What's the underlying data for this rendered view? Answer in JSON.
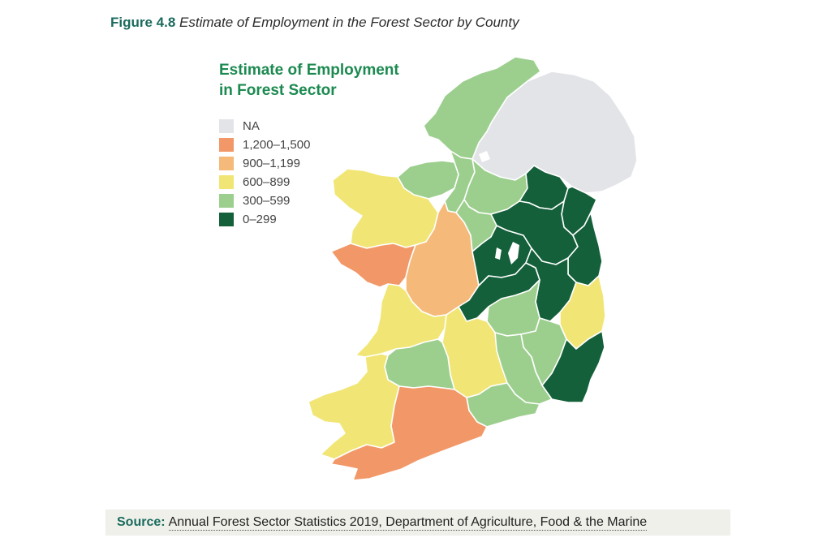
{
  "figure": {
    "number": "Figure 4.8",
    "title": "Estimate of Employment in the Forest Sector by County"
  },
  "legend": {
    "title_line1": "Estimate of Employment",
    "title_line2": "in Forest Sector",
    "items": [
      {
        "label": "NA",
        "color": "#e3e4e8"
      },
      {
        "label": "1,200–1,500",
        "color": "#f29868"
      },
      {
        "label": "900–1,199",
        "color": "#f5b97a"
      },
      {
        "label": "600–899",
        "color": "#f1e675"
      },
      {
        "label": "300–599",
        "color": "#9ccf8e"
      },
      {
        "label": "0–299",
        "color": "#14603a"
      }
    ]
  },
  "source": {
    "label": "Source:",
    "text": "Annual Forest Sector Statistics 2019, Department of Agriculture, Food & the Marine"
  },
  "map_regions": [
    {
      "region": "northern-ireland",
      "class": "NA"
    },
    {
      "region": "donegal",
      "class": "300–599"
    },
    {
      "region": "sligo",
      "class": "300–599"
    },
    {
      "region": "leitrim",
      "class": "300–599"
    },
    {
      "region": "cavan",
      "class": "300–599"
    },
    {
      "region": "monaghan",
      "class": "0–299"
    },
    {
      "region": "louth",
      "class": "0–299"
    },
    {
      "region": "mayo",
      "class": "600–899"
    },
    {
      "region": "galway",
      "class": "1,200–1,500"
    },
    {
      "region": "roscommon",
      "class": "900–1,199"
    },
    {
      "region": "longford",
      "class": "300–599"
    },
    {
      "region": "westmeath",
      "class": "0–299"
    },
    {
      "region": "meath",
      "class": "0–299"
    },
    {
      "region": "dublin",
      "class": "0–299"
    },
    {
      "region": "offaly",
      "class": "0–299"
    },
    {
      "region": "kildare",
      "class": "0–299"
    },
    {
      "region": "wicklow",
      "class": "600–899"
    },
    {
      "region": "laois",
      "class": "300–599"
    },
    {
      "region": "carlow",
      "class": "300–599"
    },
    {
      "region": "wexford",
      "class": "0–299"
    },
    {
      "region": "clare",
      "class": "600–899"
    },
    {
      "region": "tipperary",
      "class": "600–899"
    },
    {
      "region": "kilkenny",
      "class": "300–599"
    },
    {
      "region": "limerick",
      "class": "300–599"
    },
    {
      "region": "waterford",
      "class": "300–599"
    },
    {
      "region": "kerry",
      "class": "600–899"
    },
    {
      "region": "cork",
      "class": "1,200–1,500"
    }
  ]
}
